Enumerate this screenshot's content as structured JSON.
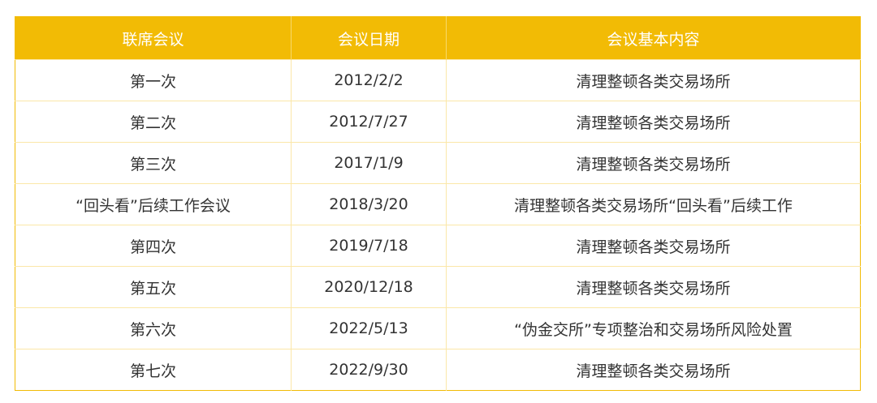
{
  "headers": [
    "联席会议",
    "会议日期",
    "会议基本内容"
  ],
  "rows": [
    [
      "第一次",
      "2012/2/2",
      "清理整顿各类交易场所"
    ],
    [
      "第二次",
      "2012/7/27",
      "清理整顿各类交易场所"
    ],
    [
      "第三次",
      "2017/1/9",
      "清理整顿各类交易场所"
    ],
    [
      "“回头看”后续工作会议",
      "2018/3/20",
      "清理整顿各类交易场所“回头看”后续工作"
    ],
    [
      "第四次",
      "2019/7/18",
      "清理整顿各类交易场所"
    ],
    [
      "第五次",
      "2020/12/18",
      "清理整顿各类交易场所"
    ],
    [
      "第六次",
      "2022/5/13",
      "“伪金交所”专项整治和交易场所风险处置"
    ],
    [
      "第七次",
      "2022/9/30",
      "清理整顿各类交易场所"
    ]
  ],
  "colors": {
    "header_bg": "#f2bb05",
    "header_text": "#ffffff",
    "border": "#fbe7a8"
  }
}
